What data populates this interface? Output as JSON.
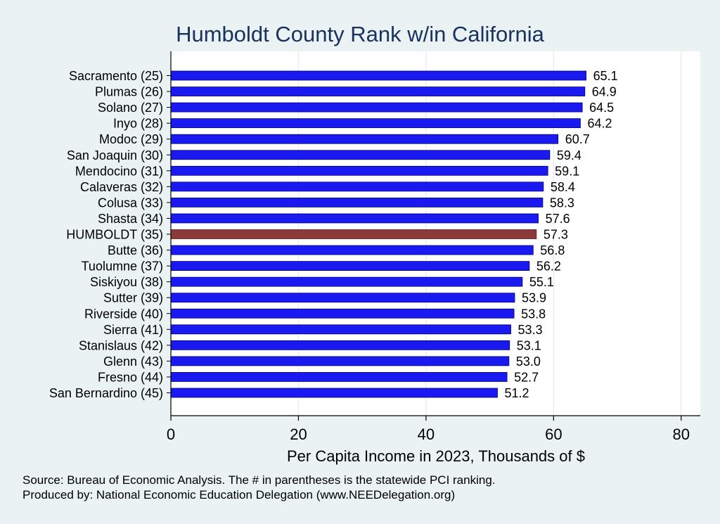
{
  "colors": {
    "background": "#eaf2f3",
    "plot_background": "#ffffff",
    "bar": "#1a1af0",
    "bar_highlight": "#8b3a3a",
    "bar_outline": "#000080",
    "gridline": "#e6ecef",
    "title": "#1a3260"
  },
  "chart_data": {
    "type": "bar",
    "orientation": "horizontal",
    "title": "Humboldt County Rank w/in California",
    "xlabel": "Per Capita Income in 2023, Thousands of $",
    "ylabel": "",
    "xlim": [
      0,
      83
    ],
    "xticks": [
      0,
      20,
      40,
      60,
      80
    ],
    "grid": true,
    "highlight": "HUMBOLDT (35)",
    "categories": [
      "Sacramento (25)",
      "Plumas (26)",
      "Solano (27)",
      "Inyo (28)",
      "Modoc (29)",
      "San Joaquin (30)",
      "Mendocino (31)",
      "Calaveras (32)",
      "Colusa (33)",
      "Shasta (34)",
      "HUMBOLDT (35)",
      "Butte (36)",
      "Tuolumne (37)",
      "Siskiyou (38)",
      "Sutter (39)",
      "Riverside (40)",
      "Sierra (41)",
      "Stanislaus (42)",
      "Glenn (43)",
      "Fresno (44)",
      "San Bernardino (45)"
    ],
    "values": [
      65.1,
      64.9,
      64.5,
      64.2,
      60.7,
      59.4,
      59.1,
      58.4,
      58.3,
      57.6,
      57.3,
      56.8,
      56.2,
      55.1,
      53.9,
      53.8,
      53.3,
      53.1,
      53.0,
      52.7,
      51.2
    ],
    "value_labels": [
      "65.1",
      "64.9",
      "64.5",
      "64.2",
      "60.7",
      "59.4",
      "59.1",
      "58.4",
      "58.3",
      "57.6",
      "57.3",
      "56.8",
      "56.2",
      "55.1",
      "53.9",
      "53.8",
      "53.3",
      "53.1",
      "53.0",
      "52.7",
      "51.2"
    ]
  },
  "notes": {
    "source": "Source: Bureau of Economic Analysis. The # in parentheses is the statewide PCI ranking.",
    "produced_by": "Produced by: National Economic Education Delegation (www.NEEDelegation.org)"
  }
}
